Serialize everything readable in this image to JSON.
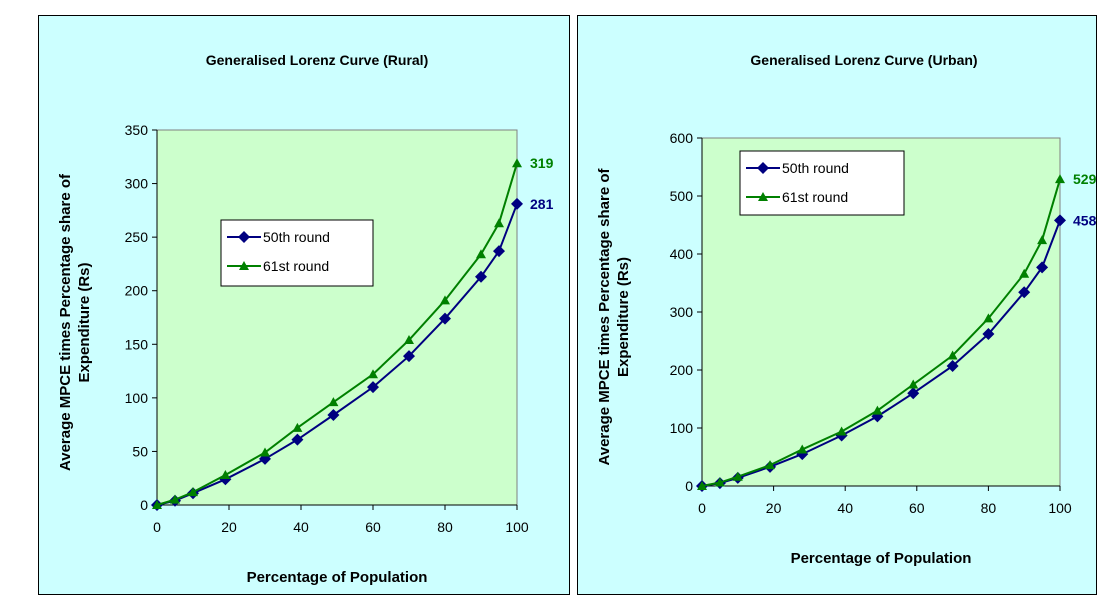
{
  "colors": {
    "series_50th": "#000080",
    "series_61st": "#008000",
    "plot_bg": "#ccffcc",
    "panel_bg": "#ccffff"
  },
  "chart_data": [
    {
      "type": "line",
      "title": "Generalised Lorenz Curve (Rural)",
      "xlabel": "Percentage of Population",
      "ylabel": "Average MPCE times Percentage share of Expenditure (Rs)",
      "xlim": [
        0,
        100
      ],
      "ylim": [
        0,
        350
      ],
      "xticks": [
        0,
        20,
        40,
        60,
        80,
        100
      ],
      "yticks": [
        0,
        50,
        100,
        150,
        200,
        250,
        300,
        350
      ],
      "legend_position": "center-left",
      "grid": false,
      "series": [
        {
          "name": "50th round",
          "marker": "diamond",
          "x": [
            0,
            5,
            10,
            19,
            30,
            39,
            49,
            60,
            70,
            80,
            90,
            95,
            100
          ],
          "y": [
            0,
            4,
            11,
            24,
            43,
            61,
            84,
            110,
            139,
            174,
            213,
            237,
            281
          ],
          "end_label": "281"
        },
        {
          "name": "61st round",
          "marker": "triangle",
          "x": [
            0,
            5,
            10,
            19,
            30,
            39,
            49,
            60,
            70,
            80,
            90,
            95,
            100
          ],
          "y": [
            0,
            5,
            12,
            28,
            49,
            72,
            96,
            122,
            154,
            191,
            234,
            263,
            319
          ],
          "end_label": "319"
        }
      ]
    },
    {
      "type": "line",
      "title": "Generalised Lorenz Curve (Urban)",
      "xlabel": "Percentage of Population",
      "ylabel": "Average MPCE times Percentage share of Expenditure (Rs)",
      "xlim": [
        0,
        100
      ],
      "ylim": [
        0,
        600
      ],
      "xticks": [
        0,
        20,
        40,
        60,
        80,
        100
      ],
      "yticks": [
        0,
        100,
        200,
        300,
        400,
        500,
        600
      ],
      "legend_position": "top-left",
      "grid": false,
      "series": [
        {
          "name": "50th round",
          "marker": "diamond",
          "x": [
            0,
            5,
            10,
            19,
            28,
            39,
            49,
            59,
            70,
            80,
            90,
            95,
            100
          ],
          "y": [
            0,
            5,
            14,
            33,
            55,
            87,
            120,
            160,
            207,
            262,
            334,
            377,
            458
          ],
          "end_label": "458"
        },
        {
          "name": "61st round",
          "marker": "triangle",
          "x": [
            0,
            5,
            10,
            19,
            28,
            39,
            49,
            59,
            70,
            80,
            90,
            95,
            100
          ],
          "y": [
            0,
            6,
            16,
            36,
            63,
            94,
            130,
            175,
            225,
            289,
            366,
            424,
            529
          ],
          "end_label": "529"
        }
      ]
    }
  ]
}
